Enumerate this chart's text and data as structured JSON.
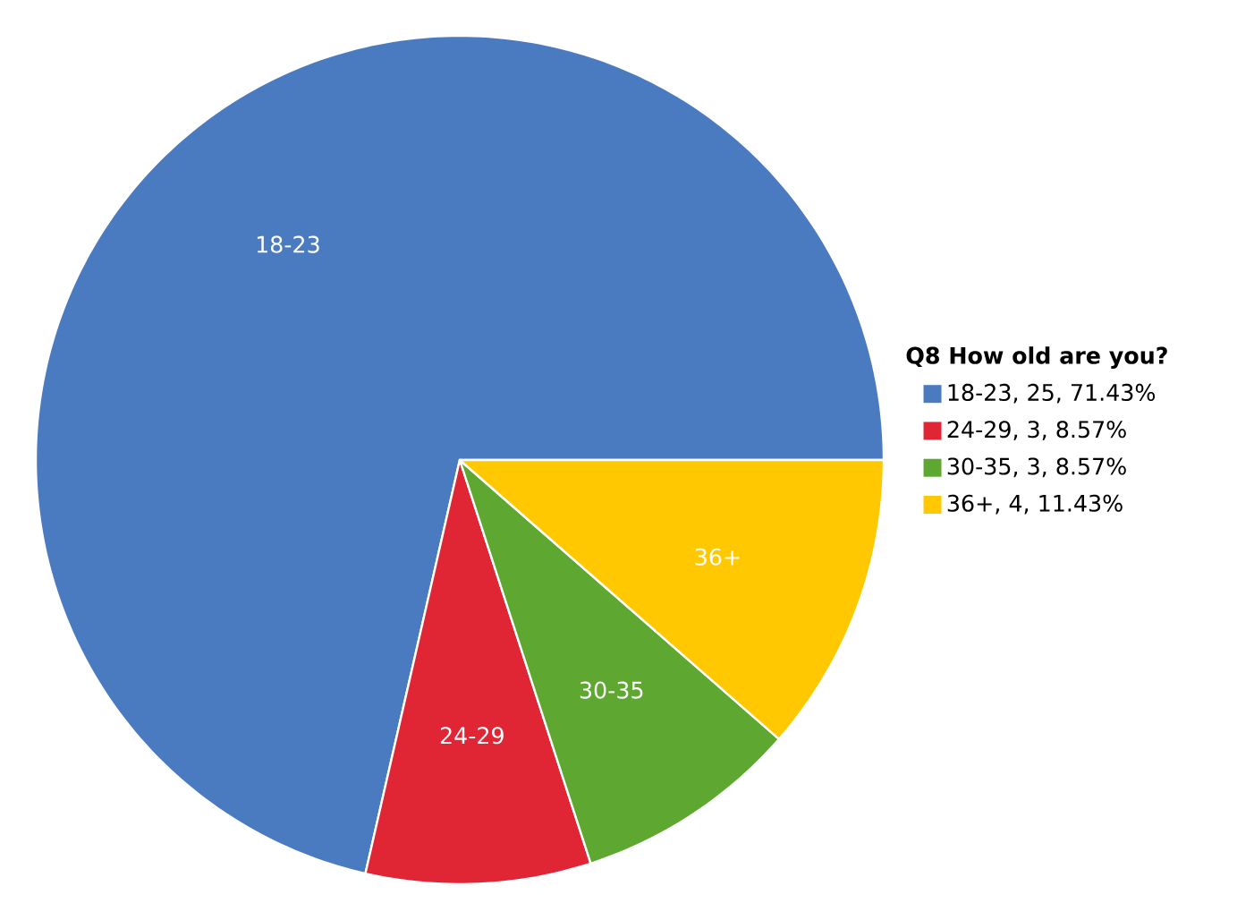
{
  "chart_data": {
    "type": "pie",
    "legend_title": "Q8 How old are you?",
    "legend": "right",
    "categories": [
      "18-23",
      "24-29",
      "30-35",
      "36+"
    ],
    "values": [
      25,
      3,
      3,
      4
    ],
    "value_labels": [
      ", 25, 71.43%",
      ", 3, 8.57%",
      ", 3, 8.57%",
      ", 4, 11.43%"
    ],
    "colors": [
      "#4a7bc0",
      "#e02535",
      "#5ea832",
      "#ffc800"
    ]
  }
}
